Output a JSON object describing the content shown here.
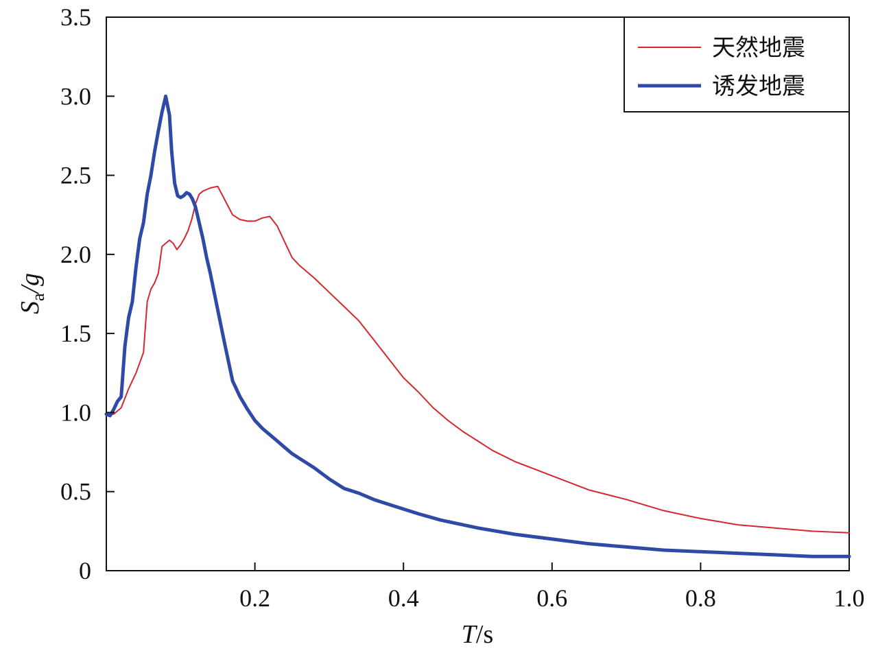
{
  "chart_data": {
    "type": "line",
    "x_axis": {
      "label_main": "T",
      "label_unit": "/s",
      "lim": [
        0,
        1.0
      ],
      "ticks": [
        0.2,
        0.4,
        0.6,
        0.8,
        1.0
      ],
      "tick_labels": [
        "0.2",
        "0.4",
        "0.6",
        "0.8",
        "1.0"
      ]
    },
    "y_axis": {
      "label_main": "S",
      "label_sub": "a",
      "label_unit": "/g",
      "lim": [
        0,
        3.5
      ],
      "ticks": [
        0,
        0.5,
        1.0,
        1.5,
        2.0,
        2.5,
        3.0,
        3.5
      ],
      "tick_labels": [
        "0",
        "0.5",
        "1.0",
        "1.5",
        "2.0",
        "2.5",
        "3.0",
        "3.5"
      ]
    },
    "grid": false,
    "legend_position": "top-right",
    "series": [
      {
        "name": "天然地震",
        "color": "#d6262f",
        "line_width": 2,
        "x": [
          0.0,
          0.01,
          0.02,
          0.03,
          0.04,
          0.05,
          0.055,
          0.06,
          0.065,
          0.07,
          0.075,
          0.08,
          0.085,
          0.09,
          0.095,
          0.1,
          0.105,
          0.11,
          0.115,
          0.12,
          0.125,
          0.13,
          0.14,
          0.15,
          0.16,
          0.17,
          0.18,
          0.19,
          0.2,
          0.21,
          0.22,
          0.23,
          0.24,
          0.25,
          0.26,
          0.28,
          0.3,
          0.32,
          0.34,
          0.36,
          0.38,
          0.4,
          0.42,
          0.44,
          0.46,
          0.48,
          0.5,
          0.52,
          0.55,
          0.6,
          0.65,
          0.7,
          0.75,
          0.8,
          0.85,
          0.9,
          0.95,
          1.0
        ],
        "y": [
          0.98,
          0.99,
          1.03,
          1.15,
          1.25,
          1.38,
          1.7,
          1.78,
          1.82,
          1.88,
          2.05,
          2.07,
          2.09,
          2.07,
          2.03,
          2.06,
          2.1,
          2.15,
          2.22,
          2.32,
          2.38,
          2.4,
          2.42,
          2.43,
          2.34,
          2.25,
          2.22,
          2.21,
          2.21,
          2.23,
          2.24,
          2.18,
          2.08,
          1.98,
          1.93,
          1.85,
          1.76,
          1.67,
          1.58,
          1.46,
          1.34,
          1.22,
          1.13,
          1.03,
          0.95,
          0.88,
          0.82,
          0.76,
          0.69,
          0.6,
          0.51,
          0.45,
          0.38,
          0.33,
          0.29,
          0.27,
          0.25,
          0.24
        ]
      },
      {
        "name": "诱发地震",
        "color": "#2f4aa6",
        "line_width": 5,
        "x": [
          0.0,
          0.005,
          0.01,
          0.015,
          0.02,
          0.025,
          0.03,
          0.035,
          0.04,
          0.045,
          0.05,
          0.055,
          0.06,
          0.065,
          0.07,
          0.075,
          0.08,
          0.085,
          0.088,
          0.092,
          0.096,
          0.1,
          0.104,
          0.108,
          0.112,
          0.116,
          0.12,
          0.125,
          0.13,
          0.135,
          0.14,
          0.15,
          0.16,
          0.17,
          0.18,
          0.19,
          0.2,
          0.21,
          0.22,
          0.23,
          0.24,
          0.25,
          0.26,
          0.27,
          0.28,
          0.3,
          0.32,
          0.34,
          0.36,
          0.38,
          0.4,
          0.42,
          0.45,
          0.5,
          0.55,
          0.6,
          0.65,
          0.7,
          0.75,
          0.8,
          0.85,
          0.9,
          0.95,
          1.0
        ],
        "y": [
          0.99,
          0.98,
          1.02,
          1.07,
          1.1,
          1.42,
          1.6,
          1.7,
          1.92,
          2.1,
          2.2,
          2.38,
          2.5,
          2.65,
          2.78,
          2.9,
          3.0,
          2.88,
          2.65,
          2.45,
          2.37,
          2.36,
          2.37,
          2.39,
          2.38,
          2.35,
          2.3,
          2.2,
          2.1,
          1.98,
          1.88,
          1.65,
          1.42,
          1.2,
          1.1,
          1.02,
          0.95,
          0.9,
          0.86,
          0.82,
          0.78,
          0.74,
          0.71,
          0.68,
          0.65,
          0.58,
          0.52,
          0.49,
          0.45,
          0.42,
          0.39,
          0.36,
          0.32,
          0.27,
          0.23,
          0.2,
          0.17,
          0.15,
          0.13,
          0.12,
          0.11,
          0.1,
          0.09,
          0.09
        ]
      }
    ]
  }
}
